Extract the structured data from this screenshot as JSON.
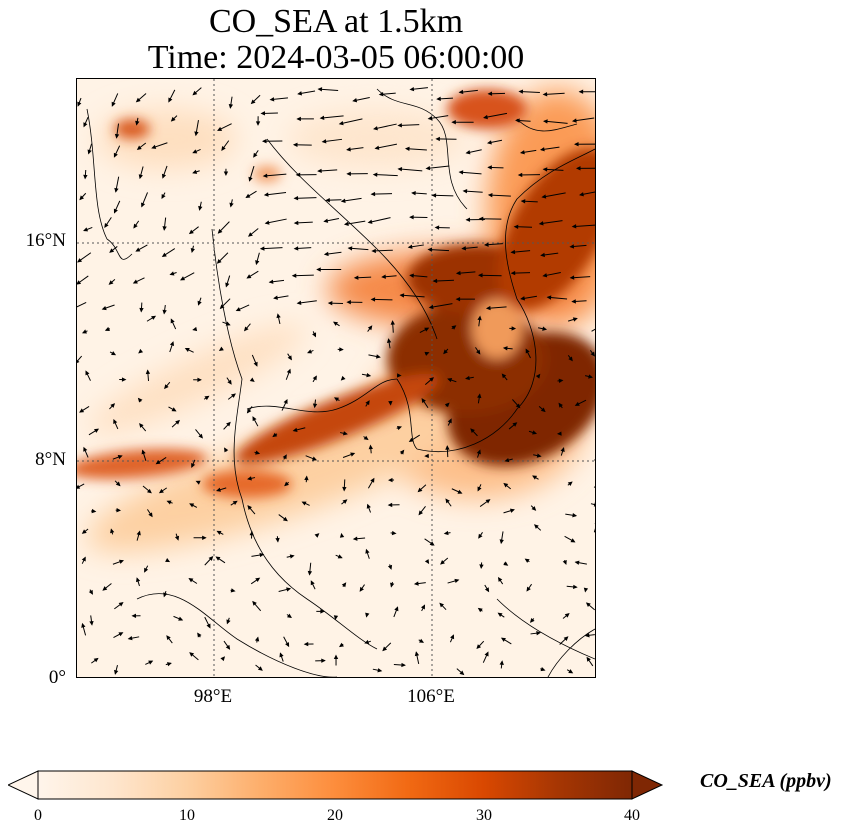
{
  "title_line1": "CO_SEA at 1.5km",
  "title_line2": "Time: 2024-03-05 06:00:00",
  "lat_labels": [
    "16°N",
    "8°N",
    "0°"
  ],
  "lon_labels": [
    "98°E",
    "106°E"
  ],
  "colorbar": {
    "label": "CO_SEA (ppbv)",
    "ticks": [
      "0",
      "10",
      "20",
      "30",
      "40"
    ],
    "min": 0,
    "max": 40,
    "colors": [
      "#fff5eb",
      "#fee6ce",
      "#fdd0a2",
      "#fdae6b",
      "#fd8d3c",
      "#f16913",
      "#d94801",
      "#a63603",
      "#7f2704"
    ]
  },
  "map": {
    "lat_range": [
      0,
      22
    ],
    "lon_range": [
      93,
      112
    ]
  }
}
